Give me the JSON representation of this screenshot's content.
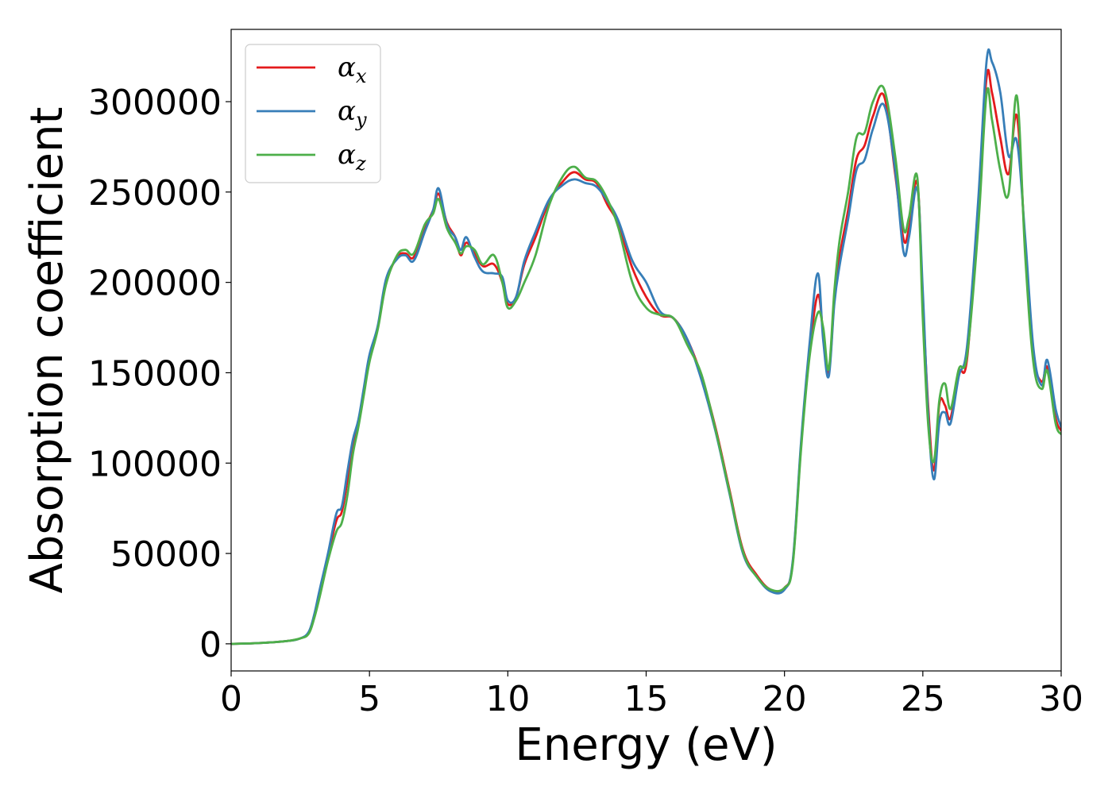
{
  "chart_data": {
    "type": "line",
    "title": "",
    "xlabel": "Energy (eV)",
    "ylabel": "Absorption coefficient",
    "xlim": [
      0,
      30
    ],
    "ylim": [
      -15000,
      340000
    ],
    "xticks": [
      0,
      5,
      10,
      15,
      20,
      25,
      30
    ],
    "xtick_labels": [
      "0",
      "5",
      "10",
      "15",
      "20",
      "25",
      "30"
    ],
    "yticks": [
      0,
      50000,
      100000,
      150000,
      200000,
      250000,
      300000
    ],
    "ytick_labels": [
      "0",
      "50000",
      "100000",
      "150000",
      "200000",
      "250000",
      "300000"
    ],
    "grid": false,
    "legend_position": "top-left",
    "series": [
      {
        "name": "αx",
        "symbol": "α",
        "sub": "x",
        "color": "#e41a1c",
        "x": [
          0,
          1,
          2,
          2.5,
          2.8,
          3.0,
          3.2,
          3.5,
          3.8,
          4.0,
          4.2,
          4.4,
          4.6,
          4.8,
          5.0,
          5.3,
          5.6,
          6.0,
          6.3,
          6.6,
          7.0,
          7.3,
          7.5,
          7.8,
          8.1,
          8.3,
          8.5,
          8.8,
          9.1,
          9.5,
          9.8,
          10.0,
          10.3,
          10.6,
          11.0,
          11.5,
          12.0,
          12.4,
          12.8,
          13.2,
          13.6,
          14.0,
          14.5,
          15.0,
          15.5,
          16.0,
          16.5,
          17.0,
          17.5,
          18.0,
          18.5,
          19.0,
          19.5,
          20.0,
          20.3,
          20.6,
          20.9,
          21.2,
          21.4,
          21.6,
          21.8,
          22.0,
          22.3,
          22.6,
          22.9,
          23.2,
          23.6,
          24.0,
          24.3,
          24.5,
          24.8,
          25.0,
          25.2,
          25.4,
          25.6,
          25.8,
          26.0,
          26.3,
          26.6,
          27.0,
          27.3,
          27.5,
          27.8,
          28.1,
          28.4,
          28.7,
          29.0,
          29.3,
          29.5,
          29.8,
          30.0
        ],
        "y": [
          0,
          400,
          1500,
          3000,
          6000,
          15000,
          28000,
          48000,
          68000,
          73000,
          90000,
          110000,
          122000,
          140000,
          158000,
          175000,
          200000,
          214000,
          216000,
          214000,
          230000,
          240000,
          249000,
          233000,
          225000,
          215000,
          222000,
          216000,
          209000,
          210000,
          200000,
          188000,
          192000,
          210000,
          225000,
          245000,
          256000,
          261000,
          257000,
          255000,
          243000,
          232000,
          208000,
          192000,
          182000,
          180000,
          168000,
          148000,
          120000,
          86000,
          52000,
          38000,
          30000,
          31000,
          45000,
          110000,
          160000,
          193000,
          172000,
          150000,
          190000,
          215000,
          240000,
          268000,
          276000,
          292000,
          303000,
          260000,
          224000,
          230000,
          255000,
          190000,
          130000,
          96000,
          133000,
          132000,
          125000,
          150000,
          158000,
          240000,
          313000,
          305000,
          280000,
          260000,
          292000,
          220000,
          160000,
          145000,
          153000,
          125000,
          118000
        ]
      },
      {
        "name": "αy",
        "symbol": "α",
        "sub": "y",
        "color": "#377eb8",
        "x": [
          0,
          1,
          2,
          2.5,
          2.8,
          3.0,
          3.2,
          3.5,
          3.8,
          4.0,
          4.2,
          4.4,
          4.6,
          4.8,
          5.0,
          5.3,
          5.6,
          6.0,
          6.3,
          6.6,
          7.0,
          7.3,
          7.5,
          7.8,
          8.1,
          8.3,
          8.5,
          8.8,
          9.1,
          9.5,
          9.8,
          10.0,
          10.3,
          10.6,
          11.0,
          11.5,
          12.0,
          12.4,
          12.8,
          13.2,
          13.6,
          14.0,
          14.5,
          15.0,
          15.5,
          16.0,
          16.5,
          17.0,
          17.5,
          18.0,
          18.5,
          19.0,
          19.5,
          20.0,
          20.3,
          20.6,
          20.9,
          21.2,
          21.4,
          21.6,
          21.8,
          22.0,
          22.3,
          22.6,
          22.9,
          23.2,
          23.6,
          24.0,
          24.3,
          24.5,
          24.8,
          25.0,
          25.2,
          25.4,
          25.6,
          25.8,
          26.0,
          26.3,
          26.6,
          27.0,
          27.3,
          27.5,
          27.8,
          28.1,
          28.4,
          28.7,
          29.0,
          29.3,
          29.5,
          29.8,
          30.0
        ],
        "y": [
          0,
          400,
          1500,
          3000,
          6500,
          16000,
          30000,
          50000,
          72000,
          76000,
          95000,
          113000,
          124000,
          142000,
          160000,
          176000,
          202000,
          213000,
          215000,
          212000,
          228000,
          240000,
          252000,
          232000,
          225000,
          218000,
          225000,
          214000,
          206000,
          205000,
          203000,
          190000,
          192000,
          212000,
          228000,
          246000,
          254000,
          257000,
          255000,
          253000,
          245000,
          234000,
          212000,
          200000,
          184000,
          180000,
          168000,
          146000,
          118000,
          84000,
          50000,
          37000,
          29000,
          30000,
          46000,
          112000,
          165000,
          205000,
          168000,
          148000,
          188000,
          210000,
          235000,
          262000,
          268000,
          285000,
          298000,
          262000,
          217000,
          225000,
          252000,
          195000,
          125000,
          91000,
          123000,
          128000,
          122000,
          148000,
          165000,
          245000,
          322000,
          322000,
          305000,
          270000,
          278000,
          225000,
          163000,
          143000,
          157000,
          130000,
          120000
        ]
      },
      {
        "name": "αz",
        "symbol": "α",
        "sub": "z",
        "color": "#4daf4a",
        "x": [
          0,
          1,
          2,
          2.5,
          2.8,
          3.0,
          3.2,
          3.5,
          3.8,
          4.0,
          4.2,
          4.4,
          4.6,
          4.8,
          5.0,
          5.3,
          5.6,
          6.0,
          6.3,
          6.6,
          7.0,
          7.3,
          7.5,
          7.8,
          8.1,
          8.3,
          8.5,
          8.8,
          9.1,
          9.5,
          9.8,
          10.0,
          10.3,
          10.6,
          11.0,
          11.5,
          12.0,
          12.4,
          12.8,
          13.2,
          13.6,
          14.0,
          14.5,
          15.0,
          15.5,
          16.0,
          16.5,
          17.0,
          17.5,
          18.0,
          18.5,
          19.0,
          19.5,
          20.0,
          20.3,
          20.6,
          20.9,
          21.2,
          21.4,
          21.6,
          21.8,
          22.0,
          22.3,
          22.6,
          22.9,
          23.2,
          23.6,
          24.0,
          24.3,
          24.5,
          24.8,
          25.0,
          25.2,
          25.4,
          25.6,
          25.8,
          26.0,
          26.3,
          26.6,
          27.0,
          27.3,
          27.5,
          27.8,
          28.1,
          28.4,
          28.7,
          29.0,
          29.3,
          29.5,
          29.8,
          30.0
        ],
        "y": [
          0,
          400,
          1500,
          3000,
          5500,
          14000,
          26000,
          46000,
          62000,
          67000,
          82000,
          105000,
          120000,
          138000,
          156000,
          174000,
          199000,
          215000,
          218000,
          216000,
          232000,
          238000,
          246000,
          230000,
          222000,
          216000,
          220000,
          218000,
          210000,
          215000,
          200000,
          186000,
          190000,
          200000,
          215000,
          243000,
          259000,
          264000,
          258000,
          256000,
          246000,
          230000,
          200000,
          186000,
          182000,
          180000,
          165000,
          149000,
          119000,
          85000,
          51000,
          37000,
          30000,
          31000,
          44000,
          108000,
          158000,
          183000,
          175000,
          152000,
          195000,
          224000,
          250000,
          280000,
          283000,
          300000,
          307000,
          270000,
          230000,
          236000,
          258000,
          180000,
          120000,
          101000,
          135000,
          144000,
          130000,
          152000,
          160000,
          230000,
          304000,
          290000,
          262000,
          249000,
          303000,
          215000,
          155000,
          141000,
          151000,
          122000,
          116000
        ]
      }
    ]
  }
}
